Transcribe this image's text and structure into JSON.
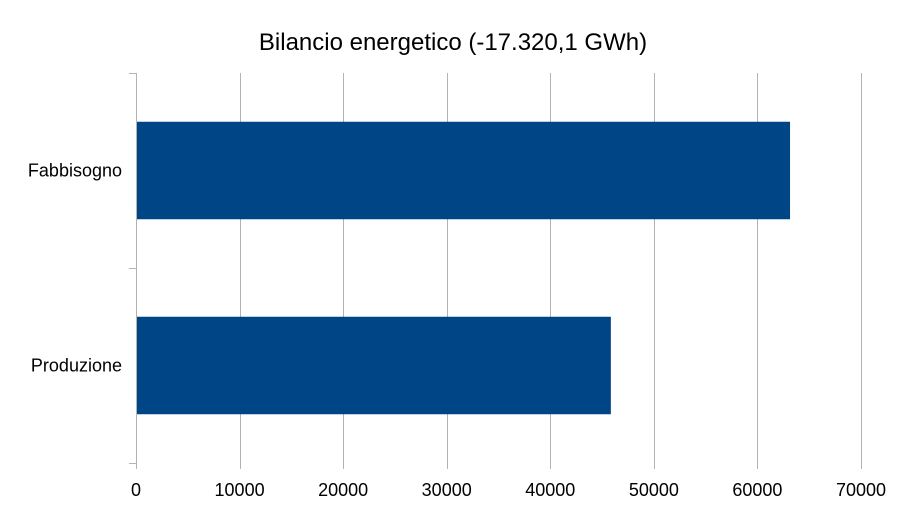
{
  "chart_data": {
    "type": "bar",
    "orientation": "horizontal",
    "title": "Bilancio energetico (-17.320,1 GWh)",
    "xlabel": "",
    "ylabel": "",
    "categories": [
      "Fabbisogno",
      "Produzione"
    ],
    "values": [
      63100,
      45800
    ],
    "xlim": [
      0,
      70000
    ],
    "ticks": [
      "0",
      "10000",
      "20000",
      "30000",
      "40000",
      "50000",
      "60000",
      "70000"
    ],
    "grid": true,
    "legend": "none",
    "bar_color": "#004586",
    "grid_color": "#b3b3b3"
  }
}
